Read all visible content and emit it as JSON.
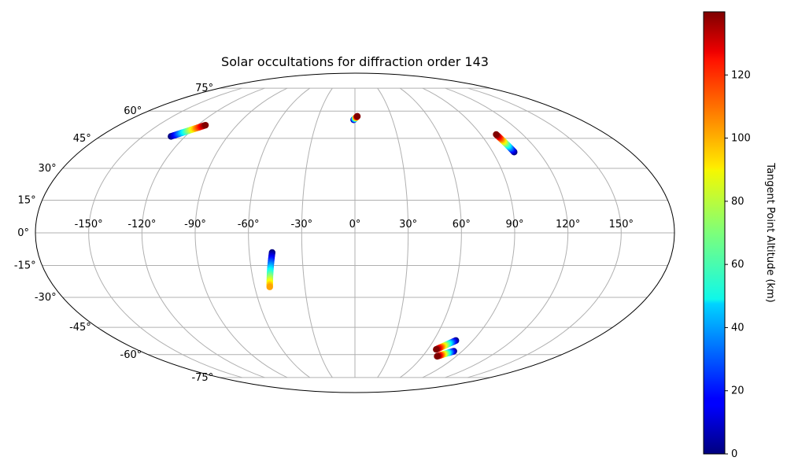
{
  "chart_data": {
    "type": "scatter",
    "projection": "mollweide",
    "title": "Solar occultations for diffraction order 143",
    "x_ticks": [
      "-150°",
      "-120°",
      "-90°",
      "-60°",
      "-30°",
      "0°",
      "30°",
      "60°",
      "90°",
      "120°",
      "150°"
    ],
    "x_tick_values": [
      -150,
      -120,
      -90,
      -60,
      -30,
      0,
      30,
      60,
      90,
      120,
      150
    ],
    "y_ticks": [
      "-75°",
      "-60°",
      "-45°",
      "-30°",
      "-15°",
      "0°",
      "15°",
      "30°",
      "45°",
      "60°",
      "75°"
    ],
    "y_tick_values": [
      -75,
      -60,
      -45,
      -30,
      -15,
      0,
      15,
      30,
      45,
      60,
      75
    ],
    "grid": true,
    "colorbar": {
      "label": "Tangent Point Altitude (km)",
      "min": 0,
      "max": 140,
      "ticks": [
        "0",
        "20",
        "40",
        "60",
        "80",
        "100",
        "120"
      ],
      "tick_values": [
        0,
        20,
        40,
        60,
        80,
        100,
        120
      ],
      "colormap": "jet"
    },
    "series": [
      {
        "points": [
          [
            -130,
            46,
            0
          ],
          [
            -114,
            52,
            140
          ]
        ]
      },
      {
        "points": [
          [
            -1,
            55,
            0
          ],
          [
            2,
            57,
            140
          ]
        ]
      },
      {
        "points": [
          [
            104,
            38,
            0
          ],
          [
            101,
            47,
            140
          ]
        ]
      },
      {
        "points": [
          [
            -47,
            -9,
            0
          ],
          [
            -51,
            -25,
            100
          ]
        ]
      },
      {
        "points": [
          [
            77,
            -52,
            0
          ],
          [
            67,
            -57,
            140
          ]
        ]
      },
      {
        "points": [
          [
            83,
            -58,
            0
          ],
          [
            73,
            -61,
            140
          ]
        ]
      }
    ]
  }
}
